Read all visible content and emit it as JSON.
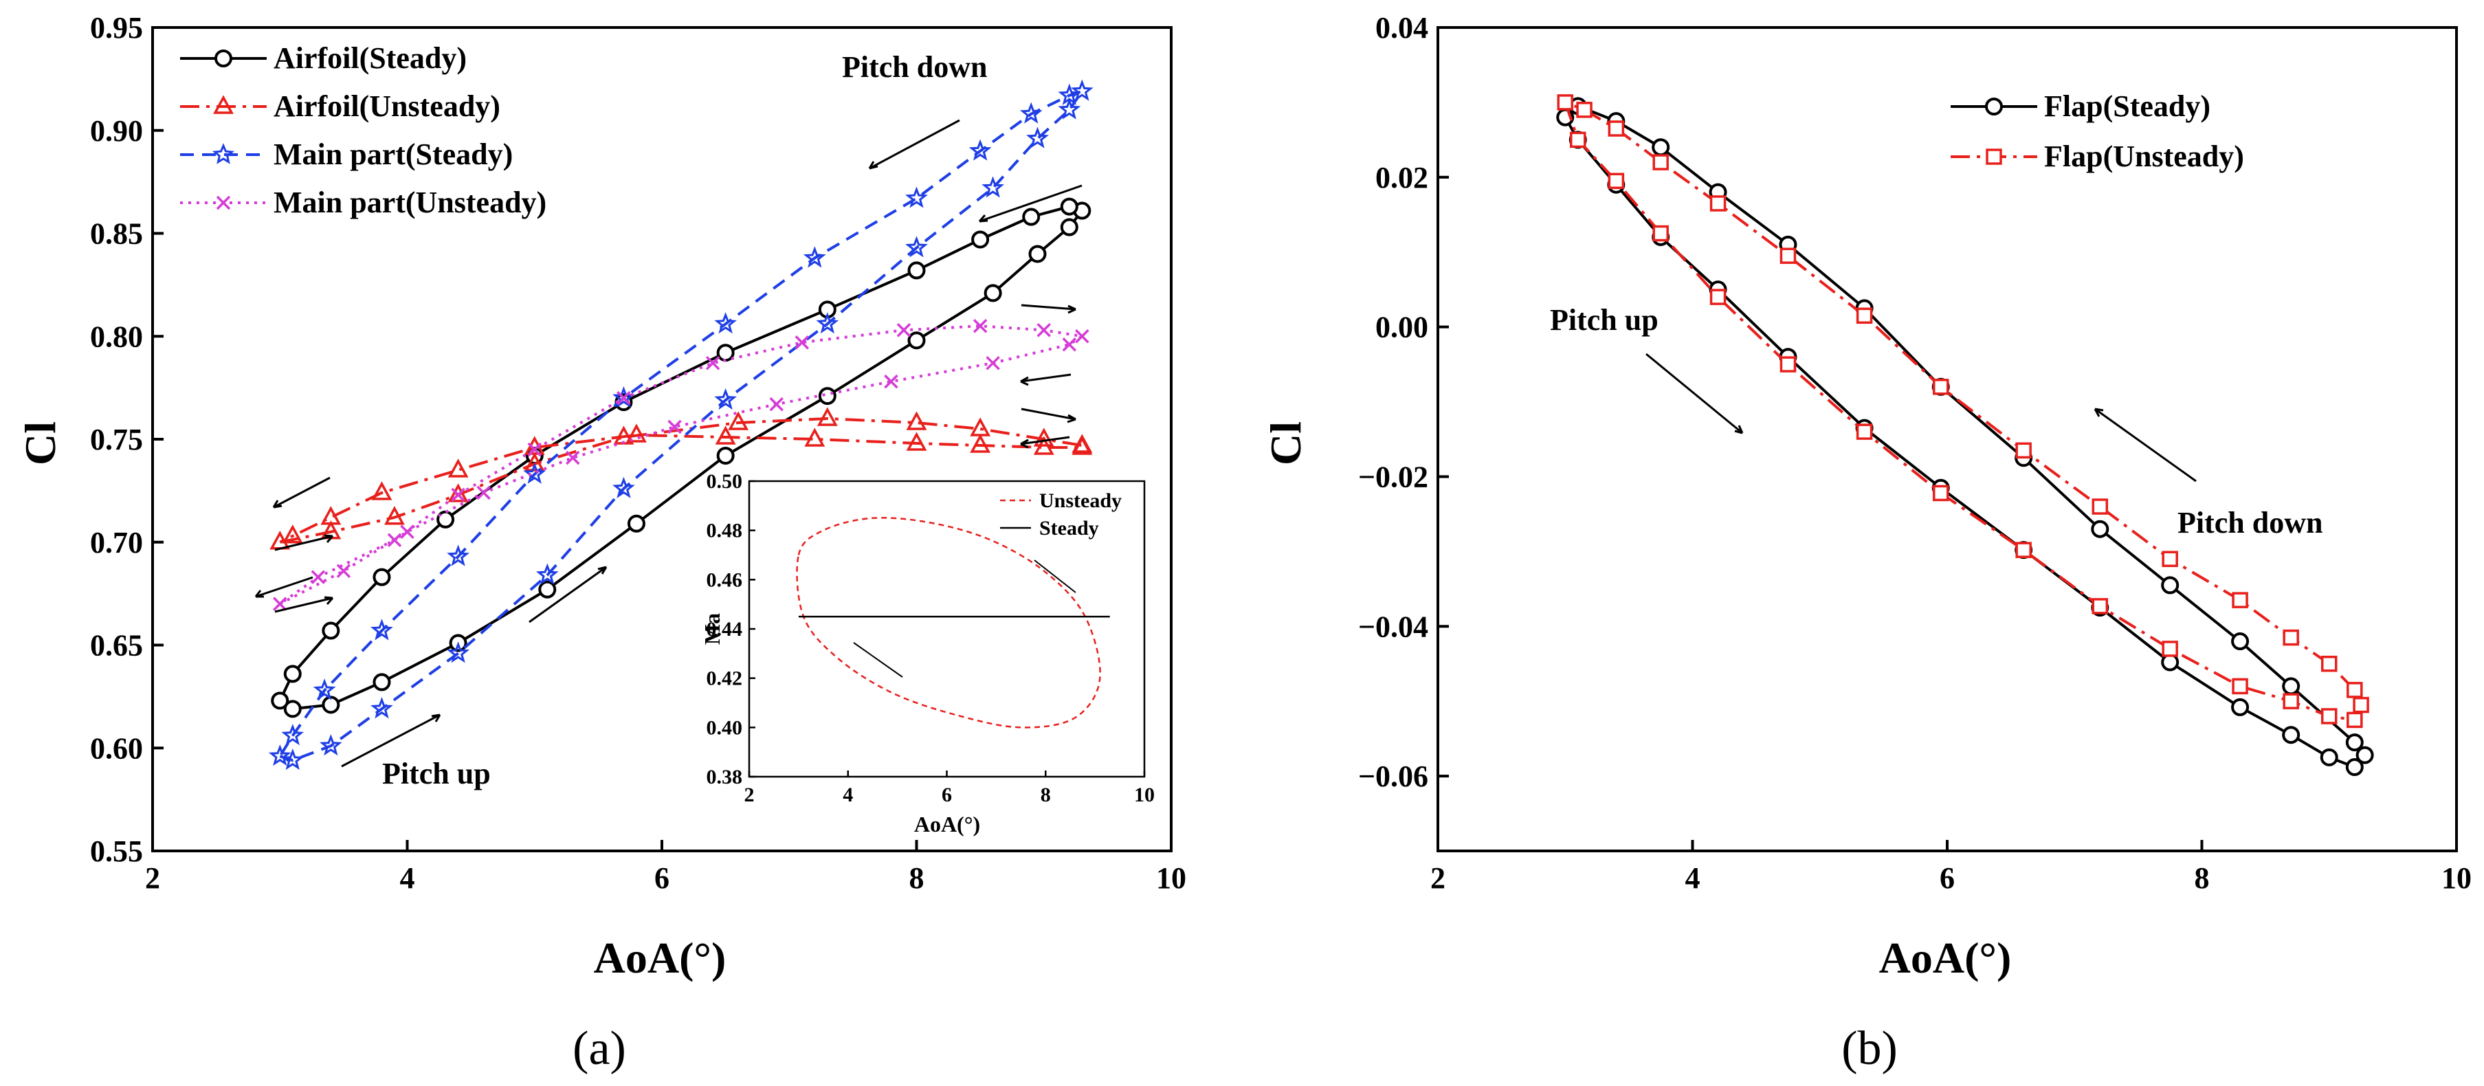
{
  "chart_data": [
    {
      "type": "line",
      "panel": "(a)",
      "xlabel": "AoA(°)",
      "ylabel": "Cl",
      "xlim": [
        2,
        10
      ],
      "ylim": [
        0.55,
        0.95
      ],
      "xticks": [
        "2",
        "4",
        "6",
        "8",
        "10"
      ],
      "yticks": [
        "0.55",
        "0.60",
        "0.65",
        "0.70",
        "0.75",
        "0.80",
        "0.85",
        "0.90",
        "0.95"
      ],
      "legend_position": "top-left",
      "annotations": [
        "Pitch down",
        "Pitch up"
      ],
      "series": [
        {
          "name": "Airfoil(Steady)",
          "color": "#000000",
          "dash": "solid",
          "marker": "circle",
          "x": [
            3.0,
            3.1,
            3.4,
            3.8,
            4.4,
            5.1,
            5.8,
            6.5,
            7.3,
            8.0,
            8.6,
            8.95,
            9.2,
            9.3,
            9.2,
            8.9,
            8.5,
            8.0,
            7.3,
            6.5,
            5.7,
            5.0,
            4.3,
            3.8,
            3.4,
            3.1,
            3.0
          ],
          "y": [
            0.623,
            0.619,
            0.621,
            0.632,
            0.651,
            0.677,
            0.709,
            0.742,
            0.771,
            0.798,
            0.821,
            0.84,
            0.853,
            0.861,
            0.863,
            0.858,
            0.847,
            0.832,
            0.813,
            0.792,
            0.768,
            0.742,
            0.711,
            0.683,
            0.657,
            0.636,
            0.623
          ]
        },
        {
          "name": "Airfoil(Unsteady)",
          "color": "#e8201c",
          "dash": "dashdot",
          "marker": "triangle",
          "x": [
            3.0,
            3.4,
            3.9,
            4.4,
            5.0,
            5.7,
            6.6,
            7.3,
            8.0,
            8.5,
            9.0,
            9.3,
            9.3,
            9.0,
            8.5,
            8.0,
            7.2,
            6.5,
            5.8,
            5.0,
            4.4,
            3.8,
            3.4,
            3.1,
            3.0
          ],
          "y": [
            0.7,
            0.705,
            0.712,
            0.723,
            0.738,
            0.751,
            0.758,
            0.76,
            0.758,
            0.755,
            0.75,
            0.747,
            0.746,
            0.746,
            0.747,
            0.748,
            0.75,
            0.751,
            0.752,
            0.746,
            0.735,
            0.724,
            0.712,
            0.703,
            0.7
          ]
        },
        {
          "name": "Main part(Steady)",
          "color": "#1f3fe6",
          "dash": "dashed",
          "marker": "star",
          "x": [
            3.0,
            3.1,
            3.4,
            3.8,
            4.4,
            5.1,
            5.7,
            6.5,
            7.3,
            8.0,
            8.6,
            8.95,
            9.2,
            9.3,
            9.2,
            8.9,
            8.5,
            8.0,
            7.2,
            6.5,
            5.7,
            5.0,
            4.4,
            3.8,
            3.35,
            3.1,
            3.0
          ],
          "y": [
            0.596,
            0.594,
            0.601,
            0.619,
            0.646,
            0.684,
            0.726,
            0.769,
            0.806,
            0.843,
            0.872,
            0.896,
            0.91,
            0.919,
            0.917,
            0.908,
            0.89,
            0.867,
            0.838,
            0.806,
            0.77,
            0.733,
            0.693,
            0.657,
            0.628,
            0.606,
            0.596
          ]
        },
        {
          "name": "Main part(Unsteady)",
          "color": "#d63cd6",
          "dash": "dotted",
          "marker": "x",
          "x": [
            3.0,
            3.5,
            4.0,
            4.6,
            5.3,
            6.1,
            6.9,
            7.8,
            8.6,
            9.2,
            9.3,
            9.0,
            8.5,
            7.9,
            7.1,
            6.4,
            5.7,
            5.0,
            4.4,
            3.9,
            3.3,
            3.0
          ],
          "y": [
            0.67,
            0.686,
            0.705,
            0.724,
            0.741,
            0.756,
            0.767,
            0.778,
            0.787,
            0.796,
            0.8,
            0.803,
            0.805,
            0.803,
            0.797,
            0.787,
            0.77,
            0.745,
            0.723,
            0.701,
            0.683,
            0.67
          ]
        }
      ],
      "inset": {
        "xlabel": "AoA(°)",
        "ylabel": "Ma",
        "xlim": [
          2,
          10
        ],
        "ylim": [
          0.38,
          0.5
        ],
        "xticks": [
          "2",
          "4",
          "6",
          "8",
          "10"
        ],
        "yticks": [
          "0.38",
          "0.40",
          "0.42",
          "0.44",
          "0.46",
          "0.48",
          "0.50"
        ],
        "series": [
          {
            "name": "Unsteady",
            "color": "#e8201c",
            "dash": "dashed",
            "x": [
              3.0,
              3.5,
              4.5,
              5.7,
              6.9,
              8.0,
              8.8,
              9.1,
              8.6,
              7.5,
              6.2,
              4.9,
              3.8,
              3.1,
              3.0
            ],
            "y": [
              0.47,
              0.48,
              0.485,
              0.483,
              0.476,
              0.463,
              0.445,
              0.42,
              0.404,
              0.4,
              0.405,
              0.414,
              0.428,
              0.445,
              0.47
            ]
          },
          {
            "name": "Steady",
            "color": "#000000",
            "dash": "solid",
            "x": [
              3.0,
              9.3
            ],
            "y": [
              0.445,
              0.445
            ]
          }
        ]
      }
    },
    {
      "type": "line",
      "panel": "(b)",
      "xlabel": "AoA(°)",
      "ylabel": "Cl",
      "xlim": [
        2,
        10
      ],
      "ylim": [
        -0.07,
        0.04
      ],
      "xticks": [
        "2",
        "4",
        "6",
        "8",
        "10"
      ],
      "yticks": [
        "−0.06",
        "−0.04",
        "−0.02",
        "0.00",
        "0.02",
        "0.04"
      ],
      "legend_position": "top-right",
      "annotations": [
        "Pitch up",
        "Pitch down"
      ],
      "series": [
        {
          "name": "Flap(Steady)",
          "color": "#000000",
          "dash": "solid",
          "marker": "circle",
          "x": [
            3.0,
            3.1,
            3.4,
            3.75,
            4.2,
            4.75,
            5.35,
            5.95,
            6.6,
            7.2,
            7.75,
            8.3,
            8.7,
            9.0,
            9.2,
            9.28,
            9.2,
            8.7,
            8.3,
            7.75,
            7.2,
            6.6,
            5.95,
            5.35,
            4.75,
            4.2,
            3.75,
            3.4,
            3.1,
            3.0
          ],
          "y": [
            0.028,
            0.025,
            0.019,
            0.012,
            0.005,
            -0.004,
            -0.0135,
            -0.0215,
            -0.0298,
            -0.0375,
            -0.0448,
            -0.0508,
            -0.0545,
            -0.0575,
            -0.0588,
            -0.0572,
            -0.0555,
            -0.048,
            -0.042,
            -0.0345,
            -0.027,
            -0.0175,
            -0.008,
            0.0025,
            0.011,
            0.018,
            0.024,
            0.0275,
            0.0295,
            0.028
          ]
        },
        {
          "name": "Flap(Unsteady)",
          "color": "#e8201c",
          "dash": "dashdot",
          "marker": "square",
          "x": [
            3.0,
            3.1,
            3.4,
            3.75,
            4.2,
            4.75,
            5.35,
            5.95,
            6.6,
            7.2,
            7.75,
            8.3,
            8.7,
            9.0,
            9.2,
            9.25,
            9.2,
            9.0,
            8.7,
            8.3,
            7.75,
            7.2,
            6.6,
            5.95,
            5.35,
            4.75,
            4.2,
            3.75,
            3.4,
            3.15,
            3.0
          ],
          "y": [
            0.03,
            0.025,
            0.0195,
            0.0125,
            0.004,
            -0.005,
            -0.014,
            -0.0222,
            -0.0298,
            -0.0373,
            -0.043,
            -0.048,
            -0.05,
            -0.052,
            -0.0525,
            -0.0505,
            -0.0485,
            -0.045,
            -0.0415,
            -0.0365,
            -0.031,
            -0.024,
            -0.0165,
            -0.008,
            0.0015,
            0.0095,
            0.0165,
            0.022,
            0.0265,
            0.029,
            0.03
          ]
        }
      ]
    }
  ],
  "captions": {
    "a": "(a)",
    "b": "(b)"
  },
  "insets": {
    "legend_unsteady": "Unsteady",
    "legend_steady": "Steady"
  }
}
